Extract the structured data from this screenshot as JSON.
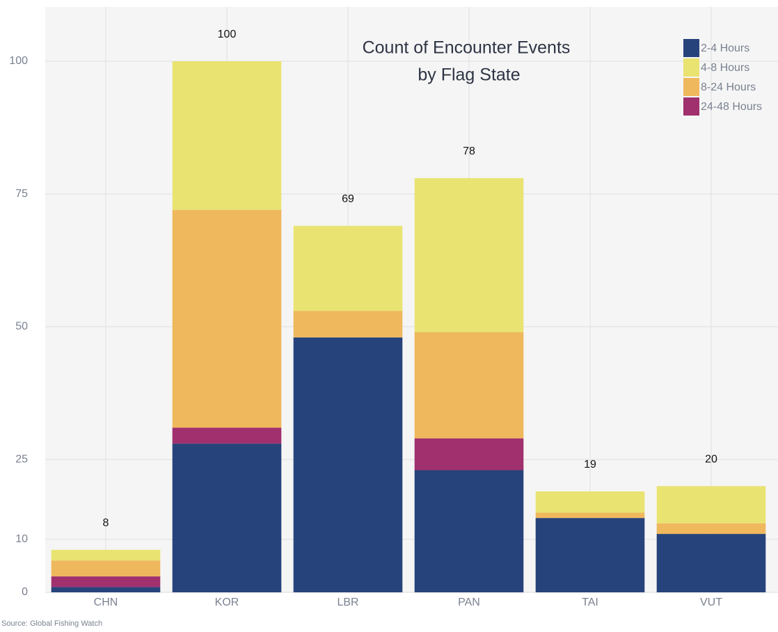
{
  "chart_data": {
    "type": "stacked_bar",
    "title": [
      "Count of Encounter Events",
      "by Flag State"
    ],
    "source": "Source: Global Fishing Watch",
    "categories": [
      "CHN",
      "KOR",
      "LBR",
      "PAN",
      "TAI",
      "VUT"
    ],
    "series": [
      {
        "name": "2-4 Hours",
        "color": "#27437b",
        "values": [
          1,
          28,
          48,
          23,
          14,
          11
        ]
      },
      {
        "name": "24-48 Hours",
        "color": "#a0306e",
        "values": [
          2,
          3,
          0,
          6,
          0,
          0
        ]
      },
      {
        "name": "8-24 Hours",
        "color": "#efb85d",
        "values": [
          3,
          41,
          5,
          20,
          1,
          2
        ]
      },
      {
        "name": "4-8 Hours",
        "color": "#e9e372",
        "values": [
          2,
          28,
          16,
          29,
          4,
          7
        ]
      }
    ],
    "legend_order": [
      0,
      3,
      2,
      1
    ],
    "totals": [
      8,
      100,
      69,
      78,
      19,
      20
    ],
    "ylim": [
      0,
      100
    ],
    "yticks": [
      0,
      10,
      25,
      50,
      75,
      100
    ],
    "grid": true,
    "legend": "top-right"
  }
}
